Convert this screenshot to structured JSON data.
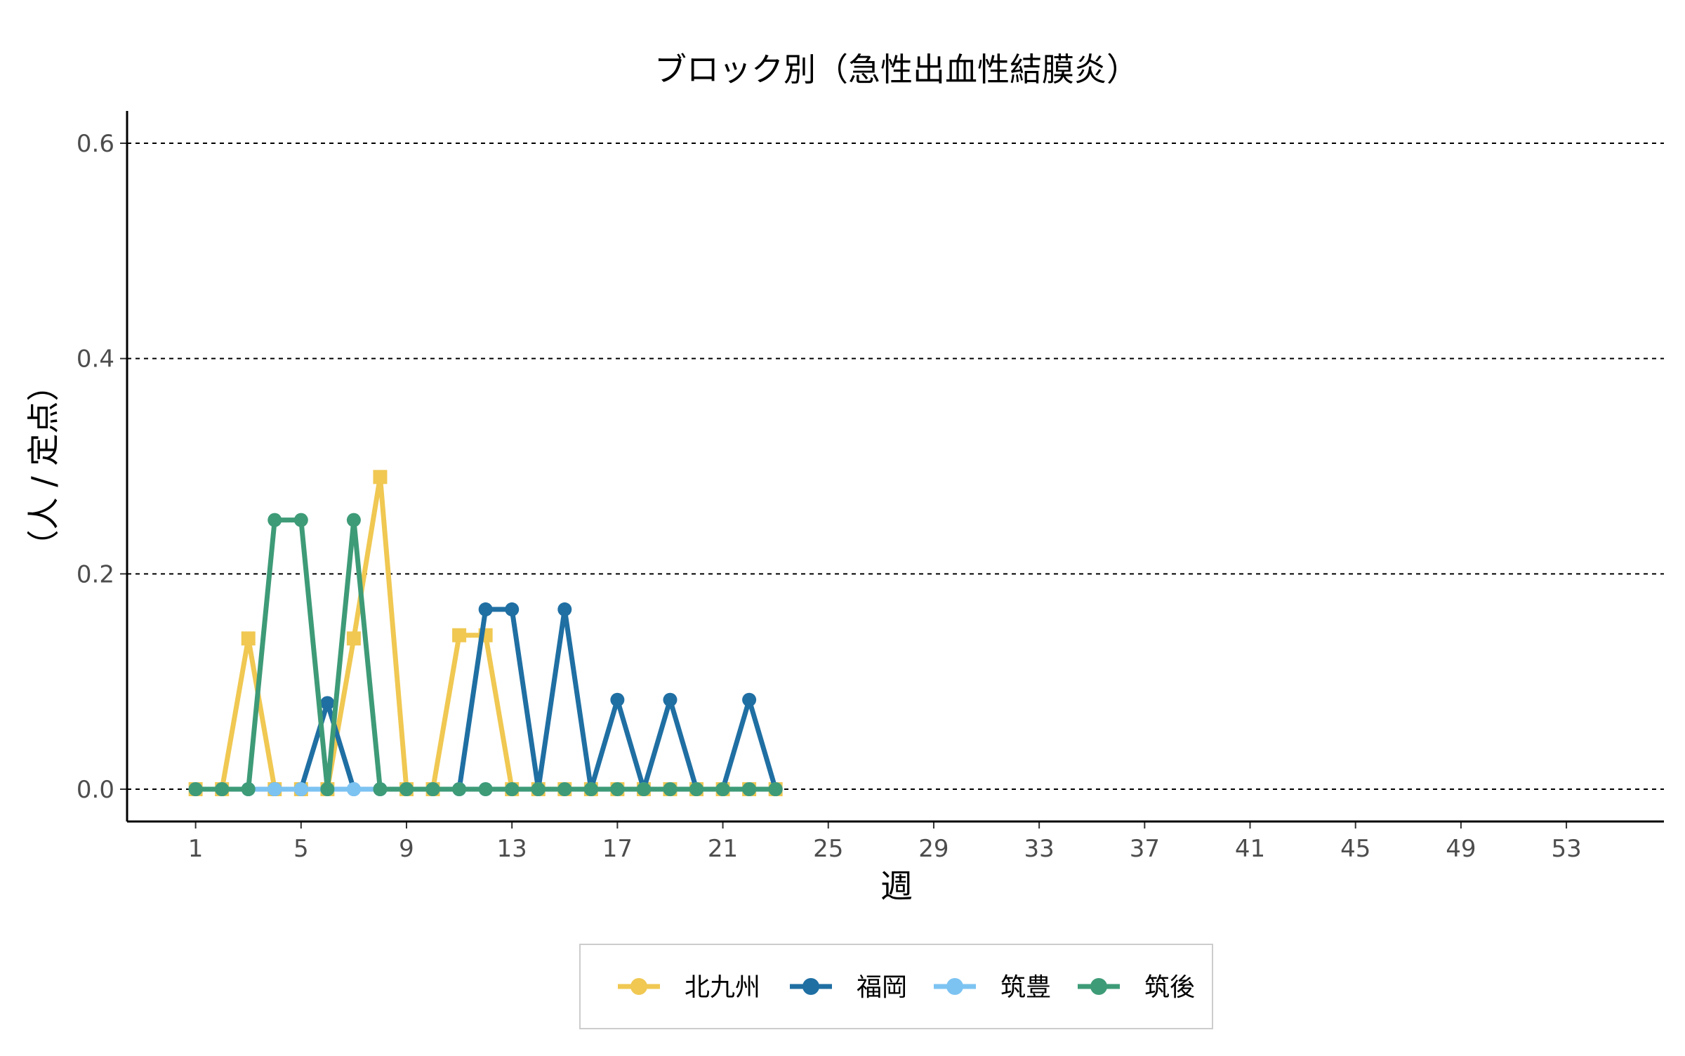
{
  "chart_data": {
    "type": "line",
    "title": "ブロック別（急性出血性結膜炎）",
    "xlabel": "週",
    "ylabel": "（人 / 定点）",
    "xlim": [
      -1.6,
      56.7
    ],
    "ylim": [
      -0.03,
      0.63
    ],
    "xticks": [
      1,
      5,
      9,
      13,
      17,
      21,
      25,
      29,
      33,
      37,
      41,
      45,
      49,
      53
    ],
    "yticks": [
      0.0,
      0.2,
      0.4,
      0.6
    ],
    "ytick_labels": [
      "0.0",
      "0.2",
      "0.4",
      "0.6"
    ],
    "grid": "horizontal-dashed",
    "legend_position": "bottom",
    "x": [
      1,
      2,
      3,
      4,
      5,
      6,
      7,
      8,
      9,
      10,
      11,
      12,
      13,
      14,
      15,
      16,
      17,
      18,
      19,
      20,
      21,
      22,
      23
    ],
    "series": [
      {
        "name": "北九州",
        "color": "#F0C852",
        "marker": "square",
        "values": [
          0,
          0,
          0.14,
          0,
          0,
          0,
          0.14,
          0.29,
          0,
          0,
          0.143,
          0.143,
          0,
          0,
          0,
          0,
          0,
          0,
          0,
          0,
          0,
          0,
          0
        ]
      },
      {
        "name": "福岡",
        "color": "#1F6FA3",
        "marker": "circle",
        "values": [
          0,
          0,
          0,
          0,
          0,
          0.08,
          0,
          0,
          0,
          0,
          0,
          0.167,
          0.167,
          0,
          0.167,
          0,
          0.083,
          0,
          0.083,
          0,
          0,
          0.083,
          0
        ]
      },
      {
        "name": "筑豊",
        "color": "#7CC3F2",
        "marker": "circle",
        "values": [
          0,
          0,
          0,
          0,
          0,
          0,
          0,
          0,
          0,
          0,
          0,
          0,
          0,
          0,
          0,
          0,
          0,
          0,
          0,
          0,
          0,
          0,
          0
        ]
      },
      {
        "name": "筑後",
        "color": "#3E9B78",
        "marker": "circle",
        "values": [
          0,
          0,
          0,
          0.25,
          0.25,
          0,
          0.25,
          0,
          0,
          0,
          0,
          0,
          0,
          0,
          0,
          0,
          0,
          0,
          0,
          0,
          0,
          0,
          0
        ]
      }
    ]
  }
}
